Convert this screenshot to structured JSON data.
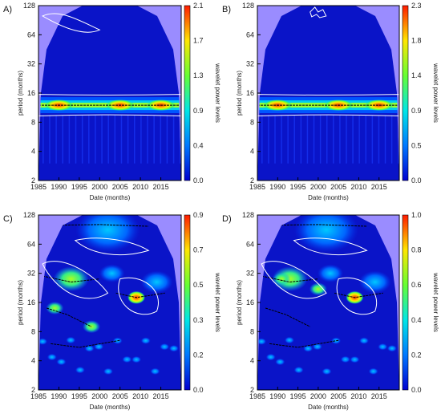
{
  "chart_data": [
    {
      "panel_label": "A)",
      "type": "heatmap",
      "xlabel": "Date (months)",
      "ylabel": "period (months)",
      "colorbar_label": "wavelet power levels",
      "x_ticks": [
        "1985",
        "1990",
        "1995",
        "2000",
        "2005",
        "2010",
        "2015"
      ],
      "y_ticks": [
        "2",
        "4",
        "8",
        "16",
        "32",
        "64",
        "128"
      ],
      "colorbar_ticks": [
        "0.0",
        "0.4",
        "0.9",
        "1.3",
        "1.7",
        "2.1"
      ],
      "xlim": [
        1985,
        2020
      ],
      "ylim": [
        2,
        128
      ],
      "y_scale": "log2",
      "zlim": [
        0,
        2.1
      ],
      "dominant_period": 12,
      "peak_years": [
        1990,
        2005,
        2015
      ],
      "grid": false
    },
    {
      "panel_label": "B)",
      "type": "heatmap",
      "xlabel": "Date (months)",
      "ylabel": "period (months)",
      "colorbar_label": "wavelet power levels",
      "x_ticks": [
        "1985",
        "1990",
        "1995",
        "2000",
        "2005",
        "2010",
        "2015"
      ],
      "y_ticks": [
        "2",
        "4",
        "8",
        "16",
        "32",
        "64",
        "128"
      ],
      "colorbar_ticks": [
        "0.0",
        "0.5",
        "0.9",
        "1.4",
        "1.8",
        "2.3"
      ],
      "xlim": [
        1985,
        2020
      ],
      "ylim": [
        2,
        128
      ],
      "y_scale": "log2",
      "zlim": [
        0,
        2.3
      ],
      "dominant_period": 12,
      "peak_years": [
        1990,
        2005,
        2015
      ],
      "grid": false
    },
    {
      "panel_label": "C)",
      "type": "heatmap",
      "xlabel": "Date (months)",
      "ylabel": "period (months)",
      "colorbar_label": "wavelet power levels",
      "x_ticks": [
        "1985",
        "1990",
        "1995",
        "2000",
        "2005",
        "2010",
        "2015"
      ],
      "y_ticks": [
        "2",
        "4",
        "8",
        "16",
        "32",
        "64",
        "128"
      ],
      "colorbar_ticks": [
        "0.0",
        "0.2",
        "0.3",
        "0.5",
        "0.7",
        "0.9"
      ],
      "xlim": [
        1985,
        2020
      ],
      "ylim": [
        2,
        128
      ],
      "y_scale": "log2",
      "zlim": [
        0,
        0.9
      ],
      "hotspots": [
        {
          "year": 2009,
          "period": 18,
          "power": 0.9
        },
        {
          "year": 1998,
          "period": 9,
          "power": 0.7
        },
        {
          "year": 1989,
          "period": 14,
          "power": 0.35
        }
      ],
      "grid": false
    },
    {
      "panel_label": "D)",
      "type": "heatmap",
      "xlabel": "Date (months)",
      "ylabel": "period (months)",
      "colorbar_label": "wavelet power levels",
      "x_ticks": [
        "1985",
        "1990",
        "1995",
        "2000",
        "2005",
        "2010",
        "2015"
      ],
      "y_ticks": [
        "2",
        "4",
        "8",
        "16",
        "32",
        "64",
        "128"
      ],
      "colorbar_ticks": [
        "0.0",
        "0.2",
        "0.4",
        "0.6",
        "0.8",
        "1.0"
      ],
      "xlim": [
        1985,
        2020
      ],
      "ylim": [
        2,
        128
      ],
      "y_scale": "log2",
      "zlim": [
        0,
        1.0
      ],
      "hotspots": [
        {
          "year": 2009,
          "period": 18,
          "power": 1.0
        },
        {
          "year": 2000,
          "period": 22,
          "power": 0.35
        },
        {
          "year": 1991,
          "period": 28,
          "power": 0.3
        }
      ],
      "grid": false
    }
  ],
  "colors": {
    "low": "#0a14c8",
    "cone": "#9a8cff",
    "contour": "#ffffff",
    "ridge": "#000000"
  }
}
